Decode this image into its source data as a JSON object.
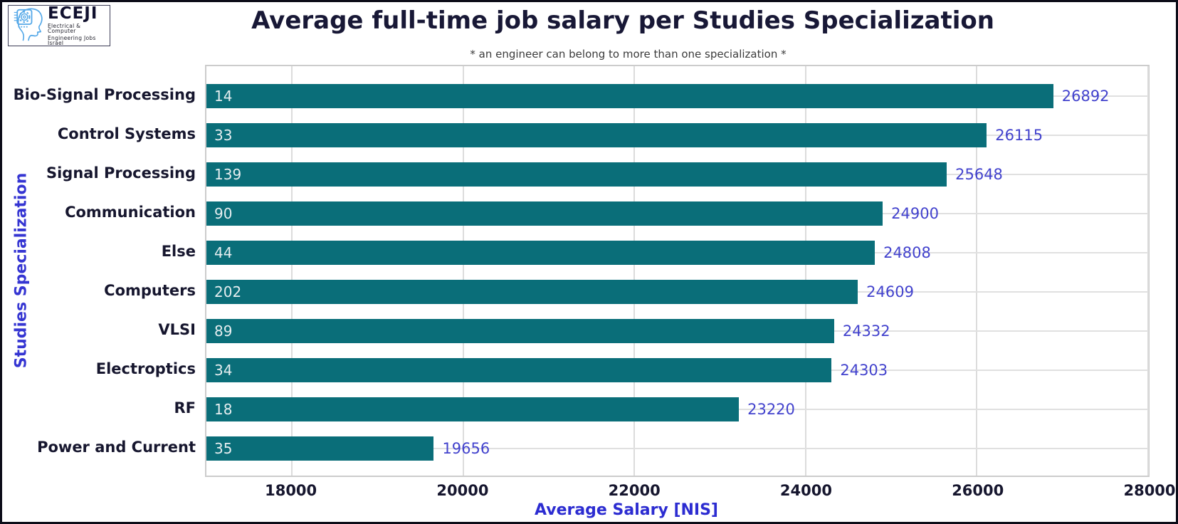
{
  "logo": {
    "brand": "ECEJI",
    "tagline_line1": "Electrical  &  Computer",
    "tagline_line2": "Engineering Jobs Israel"
  },
  "chart_data": {
    "type": "bar",
    "orientation": "horizontal",
    "title": "Average full-time job salary per Studies Specialization",
    "subtitle": "* an engineer can belong to more than one specialization *",
    "xlabel": "Average Salary [NIS]",
    "ylabel": "Studies Specialization",
    "xlim": [
      17000,
      28000
    ],
    "xticks": [
      18000,
      20000,
      22000,
      24000,
      26000,
      28000
    ],
    "grid": true,
    "legend": false,
    "colors": {
      "bar": "#0a6e79",
      "value_label": "#4242cd",
      "count_label": "#e6eef0",
      "x_axis_label": "#2c2cd1",
      "y_axis_label": "#3535d2",
      "category_label": "#16162e",
      "title": "#181836",
      "gridline": "#dcdcdc"
    },
    "categories": [
      "Bio-Signal Processing",
      "Control Systems",
      "Signal Processing",
      "Communication",
      "Else",
      "Computers",
      "VLSI",
      "Electroptics",
      "RF",
      "Power and Current"
    ],
    "series": [
      {
        "name": "average_salary_nis",
        "values": [
          26892,
          26115,
          25648,
          24900,
          24808,
          24609,
          24332,
          24303,
          23220,
          19656
        ]
      },
      {
        "name": "engineers_count_shown_inside_bars",
        "values": [
          14,
          33,
          139,
          90,
          44,
          202,
          89,
          34,
          18,
          35
        ]
      }
    ]
  }
}
